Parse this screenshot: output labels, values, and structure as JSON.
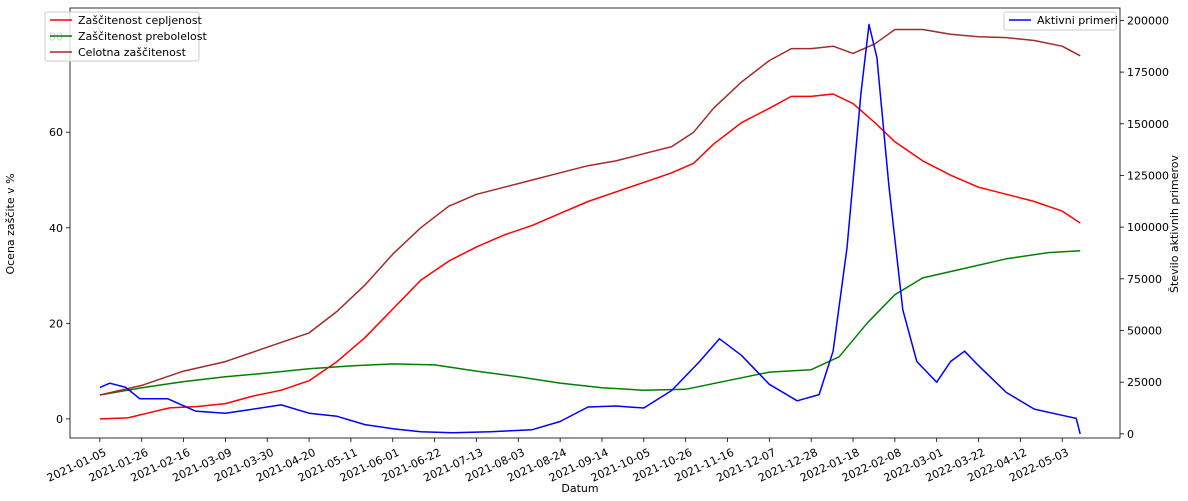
{
  "chart_data": {
    "type": "line",
    "xlabel": "Datum",
    "ylabel_left": "Ocena zaščite v %",
    "ylabel_right": "Število aktivnih primerov",
    "x_range": [
      "2020-12-21",
      "2022-06-01"
    ],
    "ylim_left": [
      -4,
      86
    ],
    "ylim_right": [
      -2000,
      206000
    ],
    "x_ticks": [
      "2021-01-05",
      "2021-01-26",
      "2021-02-16",
      "2021-03-09",
      "2021-03-30",
      "2021-04-20",
      "2021-05-11",
      "2021-06-01",
      "2021-06-22",
      "2021-07-13",
      "2021-08-03",
      "2021-08-24",
      "2021-09-14",
      "2021-10-05",
      "2021-10-26",
      "2021-11-16",
      "2021-12-07",
      "2021-12-28",
      "2022-01-18",
      "2022-02-08",
      "2022-03-01",
      "2022-03-22",
      "2022-04-12",
      "2022-05-03"
    ],
    "y_ticks_left": [
      0,
      20,
      40,
      60,
      80
    ],
    "y_ticks_right": [
      0,
      25000,
      50000,
      75000,
      100000,
      125000,
      150000,
      175000,
      200000
    ],
    "legend_left": {
      "placement": "top-left",
      "entries": [
        "Zaščitenost cepljenost",
        "Zaščitenost prebolelost",
        "Celotna zaščitenost"
      ]
    },
    "legend_right": {
      "placement": "top-right",
      "entries": [
        "Aktivni primeri"
      ]
    },
    "grid": false,
    "series": [
      {
        "name": "Zaščitenost cepljenost",
        "axis": "left",
        "color": "#ff0000",
        "points": [
          [
            "2021-01-05",
            0.0
          ],
          [
            "2021-01-19",
            0.2
          ],
          [
            "2021-02-02",
            1.6
          ],
          [
            "2021-02-09",
            2.3
          ],
          [
            "2021-02-23",
            2.6
          ],
          [
            "2021-03-09",
            3.2
          ],
          [
            "2021-03-23",
            4.8
          ],
          [
            "2021-04-06",
            6.0
          ],
          [
            "2021-04-20",
            8.0
          ],
          [
            "2021-05-04",
            12.0
          ],
          [
            "2021-05-18",
            17.0
          ],
          [
            "2021-06-01",
            23.0
          ],
          [
            "2021-06-15",
            29.0
          ],
          [
            "2021-06-29",
            33.0
          ],
          [
            "2021-07-13",
            36.0
          ],
          [
            "2021-07-27",
            38.5
          ],
          [
            "2021-08-10",
            40.5
          ],
          [
            "2021-08-24",
            43.0
          ],
          [
            "2021-09-07",
            45.5
          ],
          [
            "2021-09-21",
            47.5
          ],
          [
            "2021-10-05",
            49.5
          ],
          [
            "2021-10-19",
            51.5
          ],
          [
            "2021-10-30",
            53.5
          ],
          [
            "2021-11-09",
            57.5
          ],
          [
            "2021-11-23",
            62.0
          ],
          [
            "2021-12-07",
            65.0
          ],
          [
            "2021-12-18",
            67.5
          ],
          [
            "2021-12-28",
            67.5
          ],
          [
            "2022-01-08",
            68.0
          ],
          [
            "2022-01-18",
            66.0
          ],
          [
            "2022-01-29",
            62.0
          ],
          [
            "2022-02-08",
            58.0
          ],
          [
            "2022-02-22",
            54.0
          ],
          [
            "2022-03-08",
            51.0
          ],
          [
            "2022-03-22",
            48.5
          ],
          [
            "2022-04-05",
            47.0
          ],
          [
            "2022-04-19",
            45.5
          ],
          [
            "2022-05-03",
            43.5
          ],
          [
            "2022-05-12",
            41.0
          ]
        ]
      },
      {
        "name": "Zaščitenost prebolelost",
        "axis": "left",
        "color": "#008000",
        "points": [
          [
            "2021-01-05",
            5.0
          ],
          [
            "2021-01-26",
            6.5
          ],
          [
            "2021-02-16",
            7.8
          ],
          [
            "2021-03-09",
            8.8
          ],
          [
            "2021-03-30",
            9.6
          ],
          [
            "2021-04-20",
            10.5
          ],
          [
            "2021-05-11",
            11.1
          ],
          [
            "2021-06-01",
            11.5
          ],
          [
            "2021-06-22",
            11.3
          ],
          [
            "2021-07-13",
            10.0
          ],
          [
            "2021-08-03",
            8.8
          ],
          [
            "2021-08-24",
            7.5
          ],
          [
            "2021-09-14",
            6.5
          ],
          [
            "2021-10-05",
            6.0
          ],
          [
            "2021-10-26",
            6.2
          ],
          [
            "2021-11-16",
            8.0
          ],
          [
            "2021-12-07",
            9.8
          ],
          [
            "2021-12-28",
            10.3
          ],
          [
            "2022-01-11",
            13.0
          ],
          [
            "2022-01-25",
            20.0
          ],
          [
            "2022-02-08",
            26.0
          ],
          [
            "2022-02-22",
            29.5
          ],
          [
            "2022-03-15",
            31.5
          ],
          [
            "2022-04-05",
            33.5
          ],
          [
            "2022-04-26",
            34.8
          ],
          [
            "2022-05-12",
            35.2
          ]
        ]
      },
      {
        "name": "Celotna zaščitenost",
        "axis": "left",
        "color": "#a52a2a",
        "points": [
          [
            "2021-01-05",
            5.0
          ],
          [
            "2021-01-26",
            7.0
          ],
          [
            "2021-02-16",
            10.0
          ],
          [
            "2021-03-09",
            12.0
          ],
          [
            "2021-03-30",
            15.0
          ],
          [
            "2021-04-20",
            18.0
          ],
          [
            "2021-05-04",
            22.5
          ],
          [
            "2021-05-18",
            28.0
          ],
          [
            "2021-06-01",
            34.5
          ],
          [
            "2021-06-15",
            40.0
          ],
          [
            "2021-06-29",
            44.5
          ],
          [
            "2021-07-13",
            47.0
          ],
          [
            "2021-07-27",
            48.5
          ],
          [
            "2021-08-10",
            50.0
          ],
          [
            "2021-08-24",
            51.5
          ],
          [
            "2021-09-07",
            53.0
          ],
          [
            "2021-09-21",
            54.0
          ],
          [
            "2021-10-05",
            55.5
          ],
          [
            "2021-10-19",
            57.0
          ],
          [
            "2021-10-30",
            60.0
          ],
          [
            "2021-11-09",
            65.0
          ],
          [
            "2021-11-23",
            70.5
          ],
          [
            "2021-12-07",
            75.0
          ],
          [
            "2021-12-18",
            77.5
          ],
          [
            "2021-12-28",
            77.5
          ],
          [
            "2022-01-08",
            78.0
          ],
          [
            "2022-01-18",
            76.5
          ],
          [
            "2022-01-29",
            78.5
          ],
          [
            "2022-02-08",
            81.5
          ],
          [
            "2022-02-22",
            81.5
          ],
          [
            "2022-03-08",
            80.5
          ],
          [
            "2022-03-22",
            80.0
          ],
          [
            "2022-04-05",
            79.8
          ],
          [
            "2022-04-19",
            79.2
          ],
          [
            "2022-05-03",
            78.0
          ],
          [
            "2022-05-12",
            76.0
          ]
        ]
      },
      {
        "name": "Aktivni primeri",
        "axis": "right",
        "color": "#0000ff",
        "points": [
          [
            "2021-01-05",
            22500
          ],
          [
            "2021-01-10",
            24500
          ],
          [
            "2021-01-18",
            22500
          ],
          [
            "2021-01-25",
            17000
          ],
          [
            "2021-02-08",
            17000
          ],
          [
            "2021-02-22",
            11000
          ],
          [
            "2021-03-09",
            10000
          ],
          [
            "2021-03-23",
            12000
          ],
          [
            "2021-04-06",
            14000
          ],
          [
            "2021-04-20",
            10000
          ],
          [
            "2021-05-04",
            8500
          ],
          [
            "2021-05-18",
            4500
          ],
          [
            "2021-06-01",
            2500
          ],
          [
            "2021-06-15",
            1000
          ],
          [
            "2021-07-01",
            500
          ],
          [
            "2021-07-20",
            1000
          ],
          [
            "2021-08-10",
            2000
          ],
          [
            "2021-08-24",
            6000
          ],
          [
            "2021-09-07",
            13000
          ],
          [
            "2021-09-21",
            13500
          ],
          [
            "2021-10-05",
            12500
          ],
          [
            "2021-10-19",
            21000
          ],
          [
            "2021-11-02",
            35000
          ],
          [
            "2021-11-12",
            46000
          ],
          [
            "2021-11-23",
            38000
          ],
          [
            "2021-12-07",
            24000
          ],
          [
            "2021-12-21",
            16000
          ],
          [
            "2022-01-01",
            19000
          ],
          [
            "2022-01-08",
            40000
          ],
          [
            "2022-01-15",
            90000
          ],
          [
            "2022-01-22",
            165000
          ],
          [
            "2022-01-26",
            198000
          ],
          [
            "2022-01-30",
            182000
          ],
          [
            "2022-02-05",
            120000
          ],
          [
            "2022-02-12",
            60000
          ],
          [
            "2022-02-19",
            35000
          ],
          [
            "2022-03-01",
            25000
          ],
          [
            "2022-03-08",
            35000
          ],
          [
            "2022-03-15",
            40000
          ],
          [
            "2022-03-22",
            33000
          ],
          [
            "2022-04-05",
            20000
          ],
          [
            "2022-04-19",
            12000
          ],
          [
            "2022-05-03",
            9000
          ],
          [
            "2022-05-10",
            7500
          ],
          [
            "2022-05-12",
            0
          ]
        ]
      }
    ]
  }
}
